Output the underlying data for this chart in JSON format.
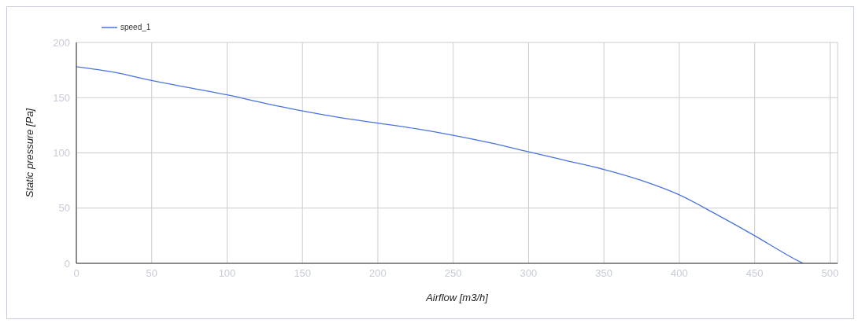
{
  "chart_data": {
    "type": "line",
    "xlabel": "Airflow [m3/h]",
    "ylabel": "Static pressure [Pa]",
    "x": [
      0,
      25,
      50,
      75,
      100,
      125,
      150,
      175,
      200,
      225,
      250,
      275,
      300,
      325,
      350,
      375,
      400,
      425,
      450,
      475,
      482
    ],
    "series": [
      {
        "name": "speed_1",
        "color": "#4a74dc",
        "values": [
          178,
          173,
          165.5,
          159,
          152.5,
          145,
          138,
          132,
          127,
          122,
          116,
          109,
          101,
          93,
          85,
          75,
          62,
          44,
          25,
          5,
          0
        ]
      }
    ],
    "xlim": [
      0,
      505
    ],
    "xticks": [
      0,
      50,
      100,
      150,
      200,
      250,
      300,
      350,
      400,
      450,
      500
    ],
    "ylim": [
      0,
      200
    ],
    "yticks": [
      0,
      50,
      100,
      150,
      200
    ],
    "grid": true,
    "legend": "top left",
    "marker": "none",
    "line_style": "solid"
  }
}
